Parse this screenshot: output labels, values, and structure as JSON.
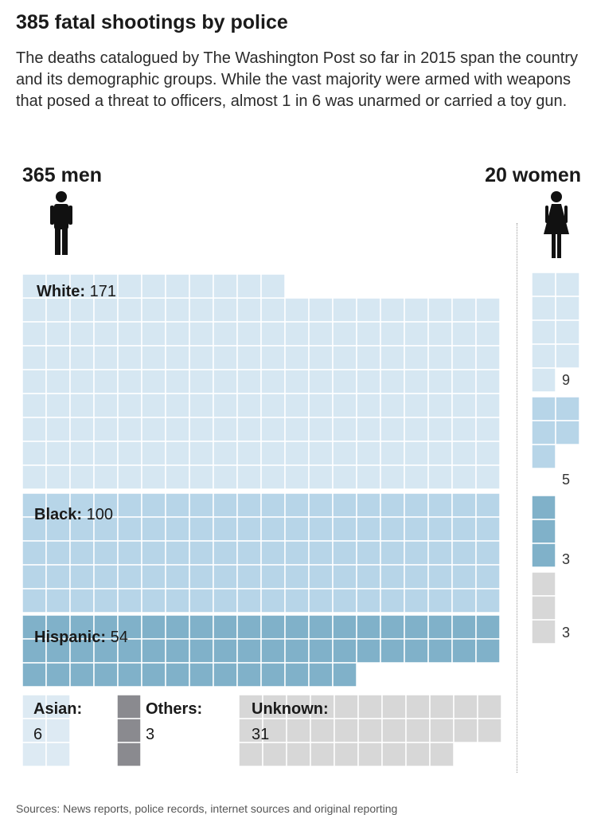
{
  "title": "385 fatal shootings by police",
  "subtitle": "The deaths catalogued by The Washington Post so far in 2015 span the country and its demographic groups. While the vast majority were armed with weapons that posed a threat to officers, almost 1 in 6 was unarmed or carried a toy gun.",
  "men_label": "365 men",
  "women_label": "20 women",
  "source": "Sources: News reports, police records, internet sources and original reporting",
  "colors": {
    "white": "#d6e7f2",
    "black": "#b7d5e8",
    "hispanic": "#80b1c9",
    "asian": "#ddeaf3",
    "others": "#8a8a8f",
    "unknown": "#d7d7d7"
  },
  "chart_data": {
    "type": "waffle",
    "groups": [
      {
        "name": "men",
        "total": 365,
        "categories": [
          {
            "key": "white",
            "label": "White:",
            "value": 171
          },
          {
            "key": "black",
            "label": "Black:",
            "value": 100
          },
          {
            "key": "hispanic",
            "label": "Hispanic:",
            "value": 54
          },
          {
            "key": "asian",
            "label": "Asian:",
            "value": 6
          },
          {
            "key": "others",
            "label": "Others:",
            "value": 3
          },
          {
            "key": "unknown",
            "label": "Unknown:",
            "value": 31
          }
        ]
      },
      {
        "name": "women",
        "total": 20,
        "categories": [
          {
            "key": "white",
            "value": 9
          },
          {
            "key": "black",
            "value": 5
          },
          {
            "key": "hispanic",
            "value": 3
          },
          {
            "key": "unknown",
            "value": 3
          }
        ]
      }
    ]
  }
}
